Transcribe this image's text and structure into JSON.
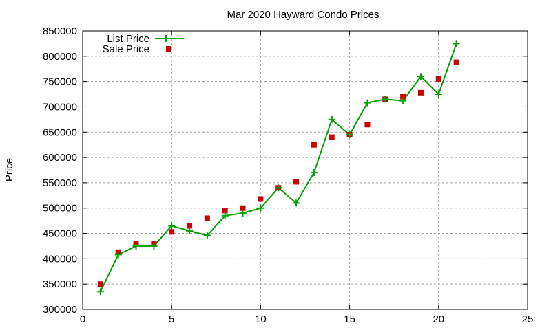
{
  "chart_data": {
    "type": "line",
    "title": "Mar 2020 Hayward Condo Prices",
    "xlabel": "",
    "ylabel": "Price",
    "xlim": [
      0,
      25
    ],
    "ylim": [
      300000,
      850000
    ],
    "xticks": [
      0,
      5,
      10,
      15,
      20,
      25
    ],
    "yticks": [
      300000,
      350000,
      400000,
      450000,
      500000,
      550000,
      600000,
      650000,
      700000,
      750000,
      800000,
      850000
    ],
    "grid": true,
    "legend_position": "top-left",
    "x": [
      1,
      2,
      3,
      4,
      5,
      6,
      7,
      8,
      9,
      10,
      11,
      12,
      13,
      14,
      15,
      16,
      17,
      18,
      19,
      20,
      21
    ],
    "series": [
      {
        "name": "List Price",
        "style": "line+cross",
        "color": "#00a000",
        "values": [
          335000,
          408000,
          425000,
          425000,
          465000,
          455000,
          446000,
          485000,
          490000,
          500000,
          540000,
          510000,
          570000,
          675000,
          645000,
          708000,
          715000,
          712000,
          760000,
          725000,
          825000
        ]
      },
      {
        "name": "Sale Price",
        "style": "square",
        "color": "#cc0000",
        "values": [
          350000,
          413000,
          430000,
          430000,
          453000,
          465000,
          480000,
          495000,
          500000,
          518000,
          540000,
          552000,
          625000,
          640000,
          645000,
          665000,
          715000,
          720000,
          728000,
          755000,
          788000
        ]
      }
    ]
  }
}
